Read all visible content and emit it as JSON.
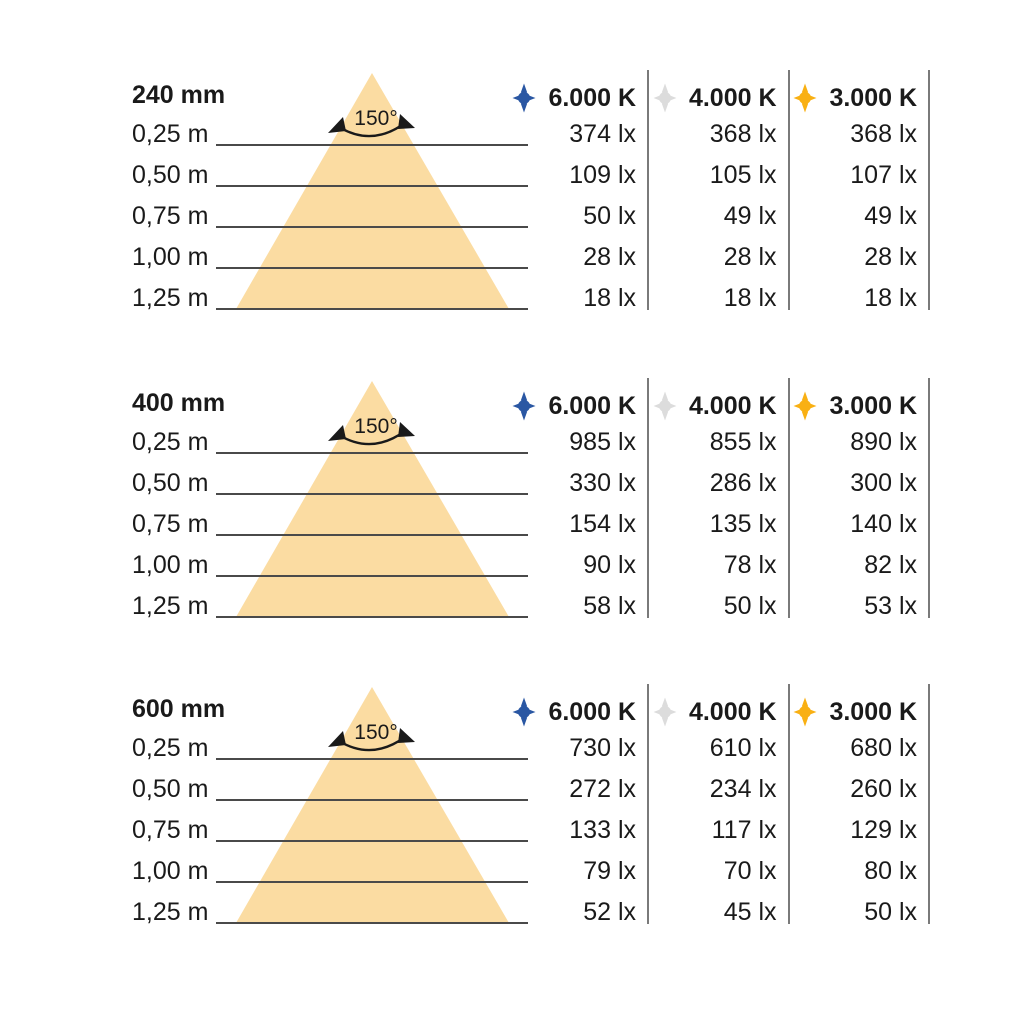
{
  "page_background": "#ffffff",
  "text_color": "#1a1a1a",
  "beam_angle_label": "150°",
  "distances": [
    "0,25 m",
    "0,50 m",
    "0,75 m",
    "1,00 m",
    "1,25 m"
  ],
  "columns": [
    {
      "label": "6.000 K",
      "icon": "light-source-icon",
      "color": "#2A57A3"
    },
    {
      "label": "4.000 K",
      "icon": "light-source-icon",
      "color": "#DCDCDC"
    },
    {
      "label": "3.000 K",
      "icon": "light-source-icon",
      "color": "#F9B013"
    }
  ],
  "cone": {
    "fill": "#FBDCA2"
  },
  "sections": [
    {
      "title": "240 mm",
      "rows": [
        [
          "374 lx",
          "368 lx",
          "368 lx"
        ],
        [
          "109 lx",
          "105 lx",
          "107 lx"
        ],
        [
          "50 lx",
          "49 lx",
          "49 lx"
        ],
        [
          "28 lx",
          "28 lx",
          "28 lx"
        ],
        [
          "18 lx",
          "18 lx",
          "18 lx"
        ]
      ]
    },
    {
      "title": "400 mm",
      "rows": [
        [
          "985 lx",
          "855 lx",
          "890 lx"
        ],
        [
          "330 lx",
          "286 lx",
          "300 lx"
        ],
        [
          "154 lx",
          "135 lx",
          "140 lx"
        ],
        [
          "90 lx",
          "78 lx",
          "82 lx"
        ],
        [
          "58 lx",
          "50 lx",
          "53 lx"
        ]
      ]
    },
    {
      "title": "600 mm",
      "rows": [
        [
          "730 lx",
          "610 lx",
          "680 lx"
        ],
        [
          "272 lx",
          "234 lx",
          "260 lx"
        ],
        [
          "133 lx",
          "117 lx",
          "129 lx"
        ],
        [
          "79 lx",
          "70 lx",
          "80 lx"
        ],
        [
          "52 lx",
          "45 lx",
          "50 lx"
        ]
      ]
    }
  ],
  "chart_data": [
    {
      "type": "table",
      "title": "240 mm",
      "beam_angle_deg": 150,
      "value_unit": "lx",
      "categories": [
        "0,25 m",
        "0,50 m",
        "0,75 m",
        "1,00 m",
        "1,25 m"
      ],
      "series": [
        {
          "name": "6.000 K",
          "values": [
            374,
            109,
            50,
            28,
            18
          ]
        },
        {
          "name": "4.000 K",
          "values": [
            368,
            105,
            49,
            28,
            18
          ]
        },
        {
          "name": "3.000 K",
          "values": [
            368,
            107,
            49,
            28,
            18
          ]
        }
      ]
    },
    {
      "type": "table",
      "title": "400 mm",
      "beam_angle_deg": 150,
      "value_unit": "lx",
      "categories": [
        "0,25 m",
        "0,50 m",
        "0,75 m",
        "1,00 m",
        "1,25 m"
      ],
      "series": [
        {
          "name": "6.000 K",
          "values": [
            985,
            330,
            154,
            90,
            58
          ]
        },
        {
          "name": "4.000 K",
          "values": [
            855,
            286,
            135,
            78,
            50
          ]
        },
        {
          "name": "3.000 K",
          "values": [
            890,
            300,
            140,
            82,
            53
          ]
        }
      ]
    },
    {
      "type": "table",
      "title": "600 mm",
      "beam_angle_deg": 150,
      "value_unit": "lx",
      "categories": [
        "0,25 m",
        "0,50 m",
        "0,75 m",
        "1,00 m",
        "1,25 m"
      ],
      "series": [
        {
          "name": "6.000 K",
          "values": [
            730,
            272,
            133,
            79,
            52
          ]
        },
        {
          "name": "4.000 K",
          "values": [
            610,
            234,
            117,
            70,
            45
          ]
        },
        {
          "name": "3.000 K",
          "values": [
            680,
            260,
            129,
            80,
            50
          ]
        }
      ]
    }
  ]
}
